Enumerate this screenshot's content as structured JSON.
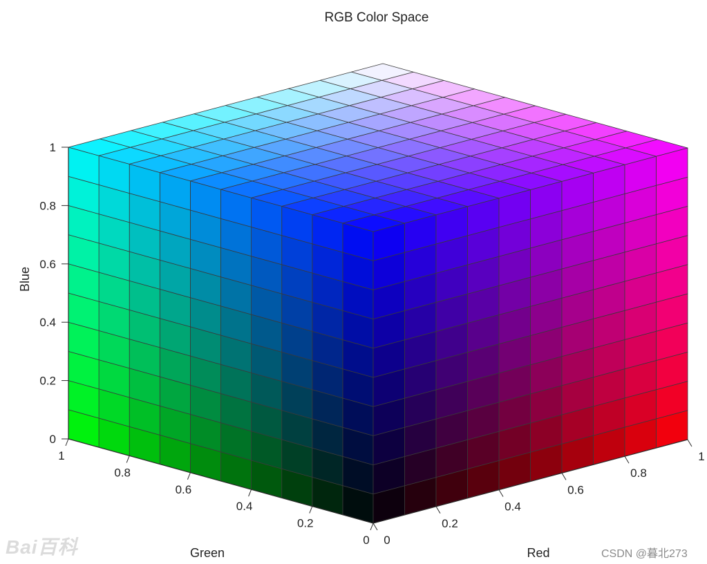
{
  "chart_data": {
    "type": "surface",
    "title": "RGB Color Space",
    "xlabel": "Red",
    "ylabel": "Green",
    "zlabel": "Blue",
    "xlim": [
      0,
      1
    ],
    "ylim": [
      0,
      1
    ],
    "zlim": [
      0,
      1
    ],
    "grid_divisions": 10,
    "x_ticks": [
      "0",
      "0.2",
      "0.4",
      "0.6",
      "0.8",
      "1"
    ],
    "y_ticks": [
      "0",
      "0.2",
      "0.4",
      "0.6",
      "0.8",
      "1"
    ],
    "z_ticks": [
      "0",
      "0.2",
      "0.4",
      "0.6",
      "0.8",
      "1"
    ],
    "faces": [
      {
        "name": "top",
        "fixed": "Blue = 1"
      },
      {
        "name": "left",
        "fixed": "Red = 0"
      },
      {
        "name": "right",
        "fixed": "Green = 0"
      }
    ]
  },
  "watermarks": {
    "left": "Bai百科",
    "right": "CSDN @暮北273"
  }
}
